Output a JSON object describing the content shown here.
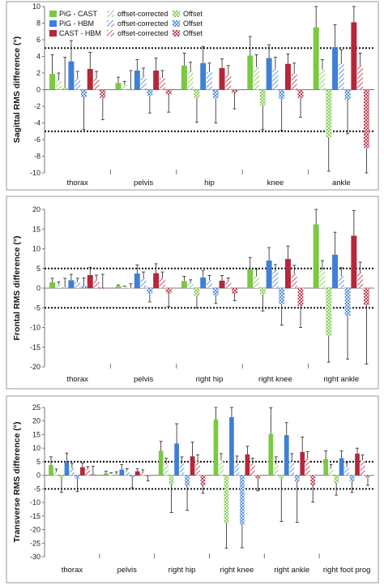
{
  "colors": {
    "pig_cast": "#7ac943",
    "pig_hbm": "#3f7fd6",
    "cast_hbm": "#b5273a",
    "grid_dotted": "#111111",
    "panel_border": "#9a9a9a"
  },
  "legend": {
    "pairs": [
      "PiG - CAST",
      "PiG - HBM",
      "CAST - HBM"
    ],
    "kinds": [
      "offset-corrected",
      "Offset"
    ]
  },
  "chart_data": [
    {
      "type": "bar",
      "ylabel": "Sagittal RMS difference (°)",
      "ylim": [
        -10,
        10
      ],
      "yticks": [
        -10,
        -8,
        -6,
        -4,
        -2,
        0,
        2,
        4,
        6,
        8,
        10
      ],
      "threshold": 5,
      "legend_position": "top-left",
      "categories": [
        "thorax",
        "pelvis",
        "hip",
        "knee",
        "ankle"
      ],
      "series": [
        {
          "name": "PiG - CAST",
          "kind": "rms",
          "pair": "pig_cast",
          "values": [
            1.9,
            0.8,
            2.9,
            4.1,
            7.5
          ],
          "errors": [
            2.3,
            0.7,
            1.5,
            2.3,
            2.8
          ]
        },
        {
          "name": "offset-corrected",
          "kind": "offset-corrected",
          "pair": "pig_cast",
          "values": [
            1.1,
            0.6,
            2.1,
            2.7,
            2.4
          ],
          "errors": [
            0.9,
            0.4,
            1.2,
            1.5,
            1.2
          ]
        },
        {
          "name": "Offset",
          "kind": "offset",
          "pair": "pig_cast",
          "values": [
            0.3,
            0.0,
            -1.0,
            -1.9,
            -5.7
          ],
          "errors": [
            3.6,
            2.3,
            2.9,
            2.9,
            4.1
          ]
        },
        {
          "name": "PiG - HBM",
          "kind": "rms",
          "pair": "pig_hbm",
          "values": [
            3.4,
            2.3,
            3.2,
            3.8,
            5.1
          ],
          "errors": [
            2.5,
            1.3,
            2.0,
            1.6,
            2.7
          ]
        },
        {
          "name": "offset-corrected",
          "kind": "offset-corrected",
          "pair": "pig_hbm",
          "values": [
            1.4,
            1.6,
            2.1,
            2.5,
            3.1
          ],
          "errors": [
            0.8,
            1.0,
            1.1,
            1.4,
            1.7
          ]
        },
        {
          "name": "Offset",
          "kind": "offset",
          "pair": "pig_hbm",
          "values": [
            -0.9,
            -0.7,
            -1.0,
            -1.1,
            -1.2
          ],
          "errors": [
            3.9,
            2.1,
            3.0,
            3.8,
            4.1
          ]
        },
        {
          "name": "CAST - HBM",
          "kind": "rms",
          "pair": "cast_hbm",
          "values": [
            2.5,
            2.3,
            2.6,
            3.1,
            8.1
          ],
          "errors": [
            2.0,
            1.5,
            1.1,
            1.2,
            2.0
          ]
        },
        {
          "name": "offset-corrected",
          "kind": "offset-corrected",
          "pair": "cast_hbm",
          "values": [
            1.4,
            1.4,
            1.9,
            1.9,
            2.9
          ],
          "errors": [
            0.8,
            0.9,
            1.0,
            1.3,
            1.5
          ]
        },
        {
          "name": "Offset",
          "kind": "offset",
          "pair": "cast_hbm",
          "values": [
            -1.0,
            -0.6,
            -0.4,
            -1.0,
            -7.0
          ],
          "errors": [
            2.6,
            2.1,
            1.9,
            2.3,
            3.0
          ]
        }
      ]
    },
    {
      "type": "bar",
      "ylabel": "Frontal RMS difference (°)",
      "ylim": [
        -20,
        20
      ],
      "yticks": [
        -20,
        -15,
        -10,
        -5,
        0,
        5,
        10,
        15,
        20
      ],
      "threshold": 5,
      "categories": [
        "thorax",
        "pelvis",
        "right hip",
        "right knee",
        "right ankle"
      ],
      "series": [
        {
          "name": "PiG - CAST",
          "kind": "rms",
          "pair": "pig_cast",
          "values": [
            1.5,
            0.5,
            1.8,
            4.8,
            16.2
          ],
          "errors": [
            1.0,
            0.3,
            1.2,
            3.0,
            3.8
          ]
        },
        {
          "name": "offset-corrected",
          "kind": "offset-corrected",
          "pair": "pig_cast",
          "values": [
            1.0,
            0.3,
            1.3,
            3.0,
            4.6
          ],
          "errors": [
            0.6,
            0.2,
            0.8,
            1.8,
            2.4
          ]
        },
        {
          "name": "Offset",
          "kind": "offset",
          "pair": "pig_cast",
          "values": [
            0.2,
            0.1,
            -2.0,
            -1.5,
            -12.0
          ],
          "errors": [
            2.3,
            1.0,
            3.0,
            4.3,
            6.8
          ]
        },
        {
          "name": "PiG - HBM",
          "kind": "rms",
          "pair": "pig_hbm",
          "values": [
            2.0,
            3.7,
            2.7,
            7.0,
            8.5
          ],
          "errors": [
            1.5,
            2.2,
            1.8,
            3.3,
            5.7
          ]
        },
        {
          "name": "offset-corrected",
          "kind": "offset-corrected",
          "pair": "pig_hbm",
          "values": [
            1.5,
            2.5,
            2.0,
            4.0,
            3.0
          ],
          "errors": [
            1.0,
            1.6,
            1.2,
            2.0,
            2.2
          ]
        },
        {
          "name": "Offset",
          "kind": "offset",
          "pair": "pig_hbm",
          "values": [
            0.5,
            -1.3,
            -1.8,
            -4.0,
            -7.0
          ],
          "errors": [
            2.1,
            2.2,
            2.1,
            5.4,
            11.0
          ]
        },
        {
          "name": "CAST - HBM",
          "kind": "rms",
          "pair": "cast_hbm",
          "values": [
            3.3,
            3.8,
            1.9,
            7.4,
            13.3
          ],
          "errors": [
            2.0,
            2.4,
            1.3,
            3.3,
            6.4
          ]
        },
        {
          "name": "offset-corrected",
          "kind": "offset-corrected",
          "pair": "cast_hbm",
          "values": [
            2.0,
            2.5,
            1.6,
            3.6,
            4.0
          ],
          "errors": [
            1.3,
            1.6,
            1.0,
            2.2,
            2.6
          ]
        },
        {
          "name": "Offset",
          "kind": "offset",
          "pair": "cast_hbm",
          "values": [
            0.0,
            -1.3,
            -1.4,
            -4.5,
            -4.3
          ],
          "errors": [
            3.5,
            3.3,
            1.8,
            5.5,
            15.0
          ]
        }
      ]
    },
    {
      "type": "bar",
      "ylabel": "Transverse RMS difference (°)",
      "ylim": [
        -30,
        25
      ],
      "yticks": [
        -30,
        -25,
        -20,
        -15,
        -10,
        -5,
        0,
        5,
        10,
        15,
        20,
        25
      ],
      "threshold": 5,
      "categories": [
        "thorax",
        "pelvis",
        "right hip",
        "right knee",
        "right ankle",
        "right foot prog"
      ],
      "series": [
        {
          "name": "PiG - CAST",
          "kind": "rms",
          "pair": "pig_cast",
          "values": [
            3.8,
            0.7,
            9.0,
            20.5,
            15.2,
            6.0
          ],
          "errors": [
            3.0,
            0.8,
            3.5,
            5.8,
            9.7,
            3.0
          ]
        },
        {
          "name": "offset-corrected",
          "kind": "offset-corrected",
          "pair": "pig_cast",
          "values": [
            1.3,
            0.5,
            4.0,
            5.5,
            4.0,
            2.5
          ],
          "errors": [
            1.0,
            0.4,
            2.3,
            2.5,
            2.8,
            1.5
          ]
        },
        {
          "name": "Offset",
          "kind": "offset",
          "pair": "pig_cast",
          "values": [
            -1.0,
            0.3,
            -3.5,
            -17.8,
            -1.2,
            -2.8
          ],
          "errors": [
            5.3,
            1.0,
            10.2,
            9.0,
            15.8,
            4.5
          ]
        },
        {
          "name": "PiG - HBM",
          "kind": "rms",
          "pair": "pig_hbm",
          "values": [
            4.8,
            2.1,
            11.7,
            21.4,
            14.8,
            6.3
          ],
          "errors": [
            3.4,
            1.8,
            7.3,
            4.0,
            4.6,
            2.7
          ]
        },
        {
          "name": "offset-corrected",
          "kind": "offset-corrected",
          "pair": "pig_hbm",
          "values": [
            2.6,
            1.5,
            4.3,
            4.5,
            5.0,
            3.0
          ],
          "errors": [
            1.8,
            1.0,
            2.5,
            2.6,
            3.0,
            1.7
          ]
        },
        {
          "name": "Offset",
          "kind": "offset",
          "pair": "pig_hbm",
          "values": [
            -1.2,
            -0.8,
            -3.9,
            -18.2,
            -2.3,
            -2.1
          ],
          "errors": [
            4.8,
            3.8,
            9.0,
            8.5,
            15.0,
            4.2
          ]
        },
        {
          "name": "CAST - HBM",
          "kind": "rms",
          "pair": "cast_hbm",
          "values": [
            3.0,
            1.5,
            7.0,
            7.7,
            8.6,
            8.0
          ],
          "errors": [
            1.5,
            0.9,
            5.2,
            3.0,
            5.5,
            2.0
          ]
        },
        {
          "name": "offset-corrected",
          "kind": "offset-corrected",
          "pair": "cast_hbm",
          "values": [
            2.2,
            1.2,
            5.0,
            4.5,
            6.0,
            5.5
          ],
          "errors": [
            1.0,
            0.8,
            2.5,
            1.8,
            2.7,
            2.0
          ]
        },
        {
          "name": "Offset",
          "kind": "offset",
          "pair": "cast_hbm",
          "values": [
            0.4,
            -0.5,
            -3.8,
            -1.2,
            -3.9,
            -0.7
          ],
          "errors": [
            3.0,
            1.5,
            2.8,
            4.5,
            6.0,
            3.0
          ]
        }
      ]
    }
  ]
}
